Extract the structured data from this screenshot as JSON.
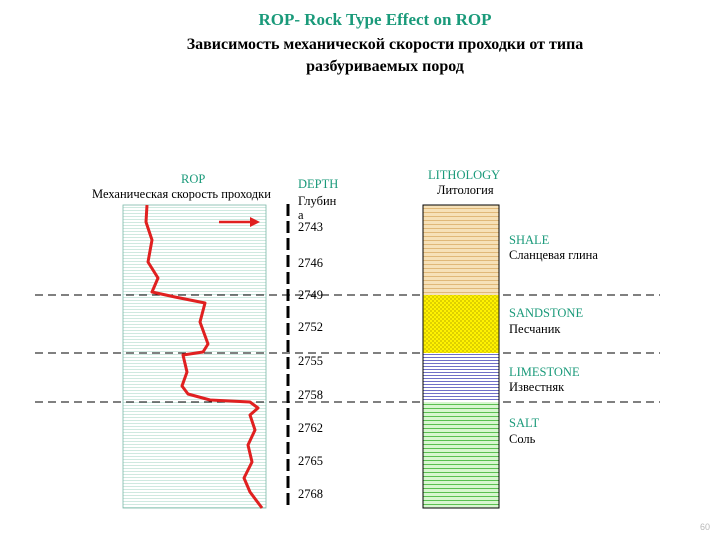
{
  "title": {
    "english": "ROP- Rock Type Effect on ROP",
    "russian_line1": "Зависимость механической скорости проходки  от типа",
    "russian_line2": "разбуриваемых пород"
  },
  "rop_header": {
    "english": "ROP",
    "russian": "Механическая скорость проходки"
  },
  "depth_header": {
    "english": "DEPTH",
    "russian_line1": "Глубин",
    "russian_line2": "а"
  },
  "lithology_header": {
    "english": "LITHOLOGY",
    "russian": "Литология"
  },
  "depth_ticks": [
    "2743",
    "2746",
    "2749",
    "2752",
    "2755",
    "2758",
    "2762",
    "2765",
    "2768"
  ],
  "layers": [
    {
      "name_en": "SHALE",
      "name_ru": "Сланцевая глина",
      "color": "#f5d9a8",
      "pattern": "horizontal-lines"
    },
    {
      "name_en": "SANDSTONE",
      "name_ru": "Песчаник",
      "color": "#fff200",
      "pattern": "dots"
    },
    {
      "name_en": "LIMESTONE",
      "name_ru": "Известняк",
      "color": "#dcdcf4",
      "pattern": "horizontal-lines"
    },
    {
      "name_en": "SALT",
      "name_ru": "Соль",
      "color": "#b8f0b0",
      "pattern": "horizontal-lines"
    }
  ],
  "colors": {
    "rop_curve": "#e02020",
    "rop_arrow": "#e02020",
    "rop_track": "#d9f0e8",
    "labels_accent": "#1a9a7a"
  },
  "page_number": "60"
}
